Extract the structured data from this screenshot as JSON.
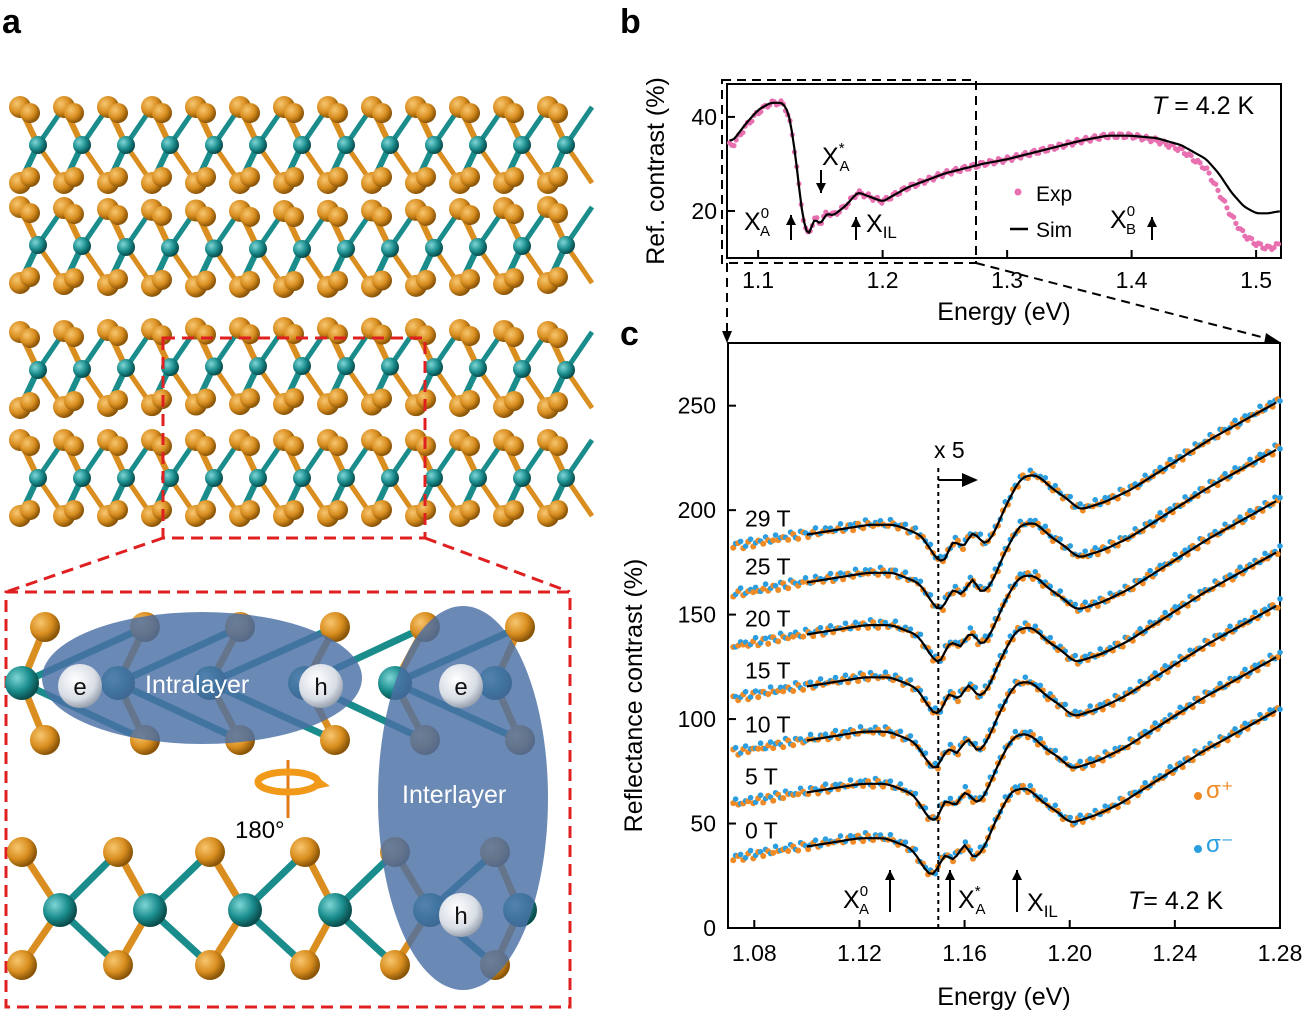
{
  "panels": {
    "a": {
      "label": "a",
      "inset_labels": {
        "e1": "e",
        "h1": "h",
        "intralayer": "Intralayer",
        "e2": "e",
        "h2": "h",
        "interlayer": "Interlayer",
        "rotation": "180°"
      }
    },
    "b": {
      "label": "b",
      "temperature_prefix": "T",
      "temperature_rest": " = 4.2 K",
      "legend_exp": "Exp",
      "legend_sim": "Sim",
      "ann_xa0_main": "X",
      "ann_xa0_sup": "0",
      "ann_xa0_sub": "A",
      "ann_xastar_main": "X",
      "ann_xastar_sup": "*",
      "ann_xastar_sub": "A",
      "ann_xil_main": "X",
      "ann_xil_sub": "IL",
      "ann_xb0_main": "X",
      "ann_xb0_sup": "0",
      "ann_xb0_sub": "B"
    },
    "c": {
      "label": "c",
      "temperature_prefix": "T",
      "temperature_rest": "= 4.2 K",
      "x5_label": "x 5",
      "legend_sigma_plus": "σ⁺",
      "legend_sigma_minus": "σ⁻",
      "ann_xa0_main": "X",
      "ann_xa0_sup": "0",
      "ann_xa0_sub": "A",
      "ann_xastar_main": "X",
      "ann_xastar_sup": "*",
      "ann_xastar_sub": "A",
      "ann_xil_main": "X",
      "ann_xil_sub": "IL"
    }
  },
  "colors": {
    "exp_b": "#e86fb0",
    "sigma_plus": "#f08a24",
    "sigma_minus": "#2a9ee0",
    "mo": "#1a8c8c",
    "te": "#d98e1f",
    "ellipse": "#4a6fa5",
    "dash_red": "#e02020"
  },
  "chart_data": [
    {
      "type": "scatter",
      "panel": "b",
      "xlabel": "Energy (eV)",
      "ylabel": "Ref. contrast (%)",
      "xlim": [
        1.075,
        1.52
      ],
      "ylim": [
        10,
        47
      ],
      "xticks": [
        "1.1",
        "1.2",
        "1.3",
        "1.4",
        "1.5"
      ],
      "yticks": [
        "20",
        "40"
      ],
      "series": [
        {
          "name": "Exp",
          "x": [
            1.08,
            1.09,
            1.1,
            1.11,
            1.12,
            1.125,
            1.13,
            1.135,
            1.14,
            1.145,
            1.15,
            1.155,
            1.16,
            1.17,
            1.18,
            1.19,
            1.2,
            1.22,
            1.25,
            1.28,
            1.3,
            1.33,
            1.36,
            1.38,
            1.4,
            1.42,
            1.44,
            1.46,
            1.47,
            1.48,
            1.49,
            1.5,
            1.51,
            1.52
          ],
          "y": [
            34,
            38,
            41,
            43,
            43,
            40,
            32,
            20,
            14,
            19,
            17,
            20,
            19,
            21,
            24,
            23,
            22,
            25,
            28,
            30,
            31,
            33,
            35,
            36,
            36,
            35,
            33,
            29,
            24,
            19,
            15,
            13,
            12,
            13
          ]
        },
        {
          "name": "Sim",
          "x": [
            1.08,
            1.09,
            1.1,
            1.11,
            1.12,
            1.125,
            1.13,
            1.135,
            1.14,
            1.145,
            1.15,
            1.155,
            1.16,
            1.17,
            1.18,
            1.19,
            1.2,
            1.22,
            1.25,
            1.28,
            1.3,
            1.33,
            1.36,
            1.38,
            1.4,
            1.42,
            1.44,
            1.46,
            1.47,
            1.48,
            1.49,
            1.5,
            1.51,
            1.52
          ],
          "y": [
            35,
            38.5,
            41.5,
            43,
            43,
            40.5,
            32,
            20,
            14,
            18.5,
            17,
            19.5,
            19,
            21,
            24,
            23,
            22,
            25,
            28,
            30,
            31,
            33,
            35,
            36,
            36,
            35.5,
            34,
            31,
            28,
            24,
            21,
            19.5,
            19.5,
            20
          ]
        }
      ],
      "annotations": [
        "X_A^0 at 1.13",
        "X_A^* at 1.152",
        "X_IL at 1.18",
        "X_B^0 at 1.42"
      ]
    },
    {
      "type": "scatter",
      "panel": "c",
      "xlabel": "Energy (eV)",
      "ylabel": "Reflectance contrast (%)",
      "xlim": [
        1.07,
        1.28
      ],
      "ylim": [
        0,
        280
      ],
      "xticks": [
        "1.08",
        "1.12",
        "1.16",
        "1.20",
        "1.24",
        "1.28"
      ],
      "yticks": [
        "0",
        "50",
        "100",
        "150",
        "200",
        "250"
      ],
      "base_profile": {
        "x": [
          1.072,
          1.09,
          1.105,
          1.12,
          1.13,
          1.14,
          1.146,
          1.149,
          1.152,
          1.156,
          1.16,
          1.163,
          1.167,
          1.172,
          1.178,
          1.184,
          1.19,
          1.196,
          1.2,
          1.21,
          1.22,
          1.23,
          1.24,
          1.25,
          1.26,
          1.27,
          1.28
        ],
        "y": [
          33,
          37,
          40,
          43,
          43,
          38,
          26,
          24,
          38,
          30,
          43,
          32,
          37,
          52,
          66,
          67,
          60,
          55,
          50,
          54,
          60,
          68,
          76,
          84,
          91,
          98,
          105
        ]
      },
      "series": [
        {
          "name": "0 T",
          "offset": 0
        },
        {
          "name": "5 T",
          "offset": 26
        },
        {
          "name": "10 T",
          "offset": 51
        },
        {
          "name": "15 T",
          "offset": 77
        },
        {
          "name": "20 T",
          "offset": 102
        },
        {
          "name": "25 T",
          "offset": 127
        },
        {
          "name": "29 T",
          "offset": 150
        }
      ],
      "marker_x5": 1.15,
      "annotations": [
        "X_A^0 at 1.133",
        "X_A^* at 1.158",
        "X_IL at 1.18"
      ]
    }
  ]
}
